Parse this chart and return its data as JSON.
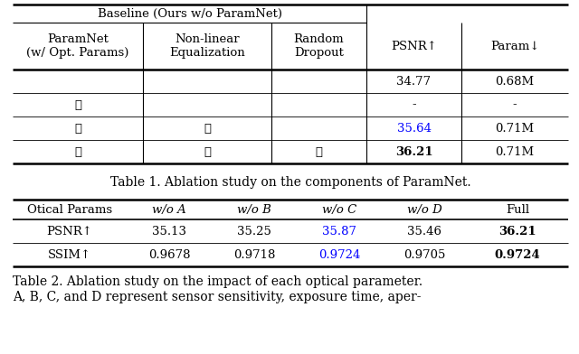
{
  "fig_width": 6.4,
  "fig_height": 3.92,
  "dpi": 100,
  "bg_color": "#ffffff",
  "table1": {
    "span_label": "Baseline (Ours w/o ParamNet)",
    "col_labels": [
      "ParamNet\n(w/ Opt. Params)",
      "Non-linear\nEqualization",
      "Random\nDropout",
      "PSNR↑",
      "Param↓"
    ],
    "rows": [
      [
        "",
        "",
        "",
        "34.77",
        "0.68M"
      ],
      [
        "✓",
        "",
        "",
        "-",
        "-"
      ],
      [
        "✓",
        "✓",
        "",
        "35.64",
        "0.71M"
      ],
      [
        "✓",
        "✓",
        "✓",
        "36.21",
        "0.71M"
      ]
    ],
    "psnr_colors": [
      "black",
      "black",
      "#0000ff",
      "black"
    ],
    "psnr_bold": [
      false,
      false,
      false,
      true
    ],
    "param_bold": [
      false,
      false,
      false,
      false
    ]
  },
  "caption1": "Table 1. Ablation study on the components of ParamNet.",
  "table2": {
    "col_labels": [
      "Otical Params",
      "w/o A",
      "w/o B",
      "w/o C",
      "w/o D",
      "Full"
    ],
    "col_italic": [
      false,
      true,
      true,
      true,
      true,
      false
    ],
    "rows": [
      [
        "PSNR↑",
        "35.13",
        "35.25",
        "35.87",
        "35.46",
        "36.21"
      ],
      [
        "SSIM↑",
        "0.9678",
        "0.9718",
        "0.9724",
        "0.9705",
        "0.9724"
      ]
    ],
    "cell_colors": [
      [
        "black",
        "black",
        "black",
        "#0000ff",
        "black",
        "black"
      ],
      [
        "black",
        "black",
        "black",
        "#0000ff",
        "black",
        "black"
      ]
    ],
    "cell_bold": [
      [
        false,
        false,
        false,
        false,
        false,
        true
      ],
      [
        false,
        false,
        false,
        false,
        false,
        true
      ]
    ]
  },
  "caption2a": "Table 2. Ablation study on the impact of each optical parameter.",
  "caption2b": "A, B, C, and D represent sensor sensitivity, exposure time, aper-"
}
